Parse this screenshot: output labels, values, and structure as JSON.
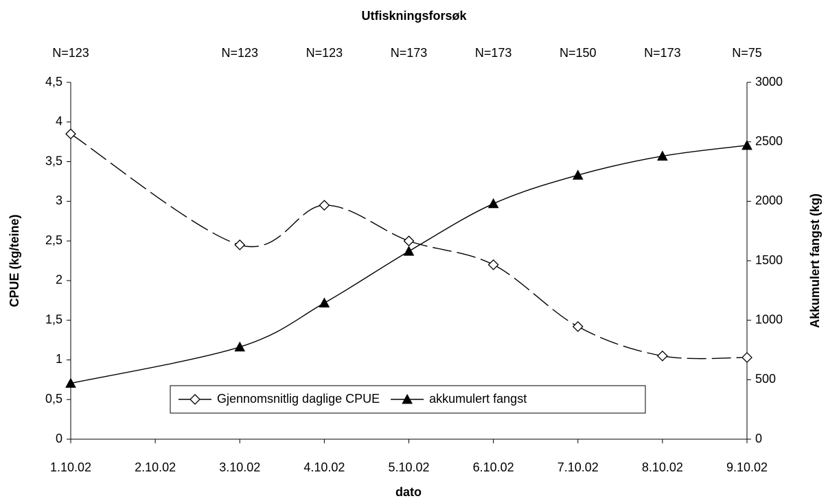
{
  "chart_data": {
    "type": "line",
    "title": "Utfiskningsforsøk",
    "x_label": "dato",
    "y_label": "CPUE (kg/teine)",
    "y2_label": "Akkumulert fangst (kg)",
    "categories": [
      "1.10.02",
      "2.10.02",
      "3.10.02",
      "4.10.02",
      "5.10.02",
      "6.10.02",
      "7.10.02",
      "8.10.02",
      "9.10.02"
    ],
    "n_labels": [
      "N=123",
      null,
      "N=123",
      "N=123",
      "N=173",
      "N=173",
      "N=150",
      "N=173",
      "N=75"
    ],
    "series": [
      {
        "name": "Gjennomsnitlig daglige CPUE",
        "color": "#000000",
        "marker": "diamond",
        "dashed": true,
        "values": [
          3.85,
          null,
          2.45,
          2.95,
          2.5,
          2.2,
          1.42,
          1.05,
          1.03
        ]
      },
      {
        "name": "akkumulert fangst",
        "color": "#000000",
        "marker": "triangle",
        "dashed": false,
        "axis": "y2",
        "values": [
          470,
          null,
          775,
          1145,
          1580,
          1980,
          2220,
          2380,
          2470
        ]
      }
    ],
    "ylim": [
      0,
      4.5
    ],
    "yticks": [
      0,
      {
        "value": 0.5,
        "label": "0,5"
      },
      1,
      {
        "value": 1.5,
        "label": "1,5"
      },
      2,
      {
        "value": 2.5,
        "label": "2,5"
      },
      3,
      {
        "value": 3.5,
        "label": "3,5"
      },
      4,
      {
        "value": 4.5,
        "label": "4,5"
      }
    ],
    "y2lim": [
      0,
      3000
    ],
    "y2ticks": [
      0,
      500,
      1000,
      1500,
      2000,
      2500,
      3000
    ],
    "grid": false,
    "legend": "lower center"
  }
}
